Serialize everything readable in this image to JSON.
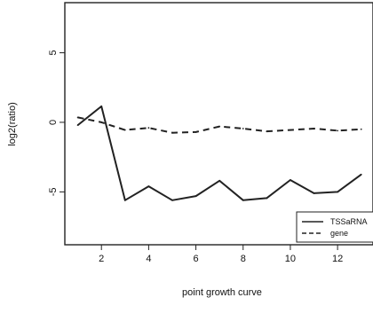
{
  "chart_data": {
    "type": "line",
    "title": "",
    "xlabel": "point growth curve",
    "ylabel": "log2(ratio)",
    "xlim": [
      0.45,
      13.5
    ],
    "ylim": [
      -8.8,
      8.6
    ],
    "xticks": [
      2,
      4,
      6,
      8,
      10,
      12
    ],
    "yticks": [
      5,
      0,
      -5
    ],
    "grid": false,
    "legend": {
      "placement": "bottom-right",
      "entries": [
        "TSSaRNA",
        "gene"
      ]
    },
    "x": [
      1,
      2,
      3,
      4,
      5,
      6,
      7,
      8,
      9,
      10,
      11,
      12,
      13
    ],
    "series": [
      {
        "name": "TSSaRNA",
        "line_style": "solid",
        "color": "#222222",
        "values": [
          -0.2,
          1.15,
          -5.6,
          -4.6,
          -5.6,
          -5.3,
          -4.2,
          -5.6,
          -5.45,
          -4.15,
          -5.1,
          -5.0,
          -3.75
        ]
      },
      {
        "name": "gene",
        "line_style": "dashed",
        "color": "#222222",
        "values": [
          0.35,
          0.0,
          -0.55,
          -0.4,
          -0.75,
          -0.7,
          -0.3,
          -0.45,
          -0.65,
          -0.55,
          -0.45,
          -0.6,
          -0.5
        ]
      }
    ]
  }
}
